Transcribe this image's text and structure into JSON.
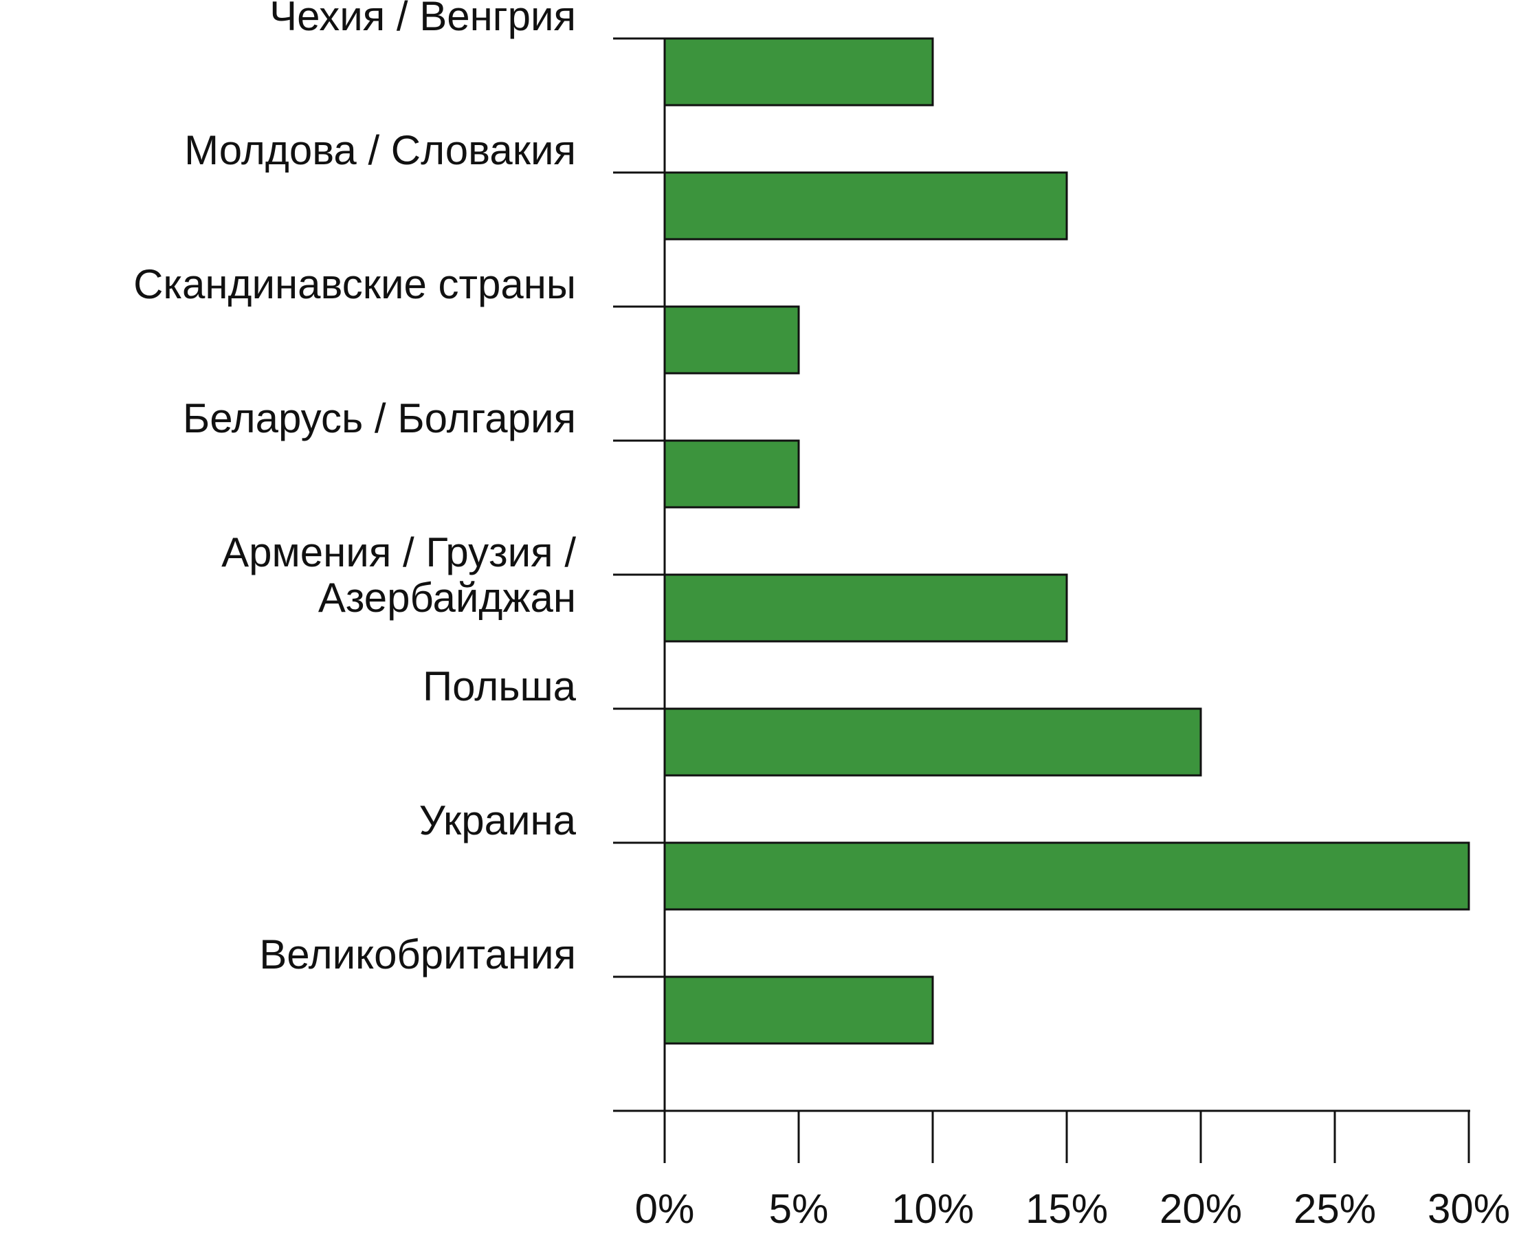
{
  "chart_data": {
    "type": "bar",
    "orientation": "horizontal",
    "categories": [
      [
        "Чехия / Венгрия"
      ],
      [
        "Молдова / Словакия"
      ],
      [
        "Скандинавские страны"
      ],
      [
        "Беларусь / Болгария"
      ],
      [
        "Армения / Грузия /",
        "Азербайджан"
      ],
      [
        "Польша"
      ],
      [
        "Украина"
      ],
      [
        "Великобритания"
      ]
    ],
    "values": [
      10,
      15,
      5,
      5,
      15,
      20,
      30,
      10
    ],
    "xlim": [
      0,
      30
    ],
    "xticks": [
      "0%",
      "5%",
      "10%",
      "15%",
      "20%",
      "25%",
      "30%"
    ],
    "bar_color": "#3c943d",
    "grid": false,
    "title": "",
    "xlabel": "",
    "ylabel": ""
  }
}
